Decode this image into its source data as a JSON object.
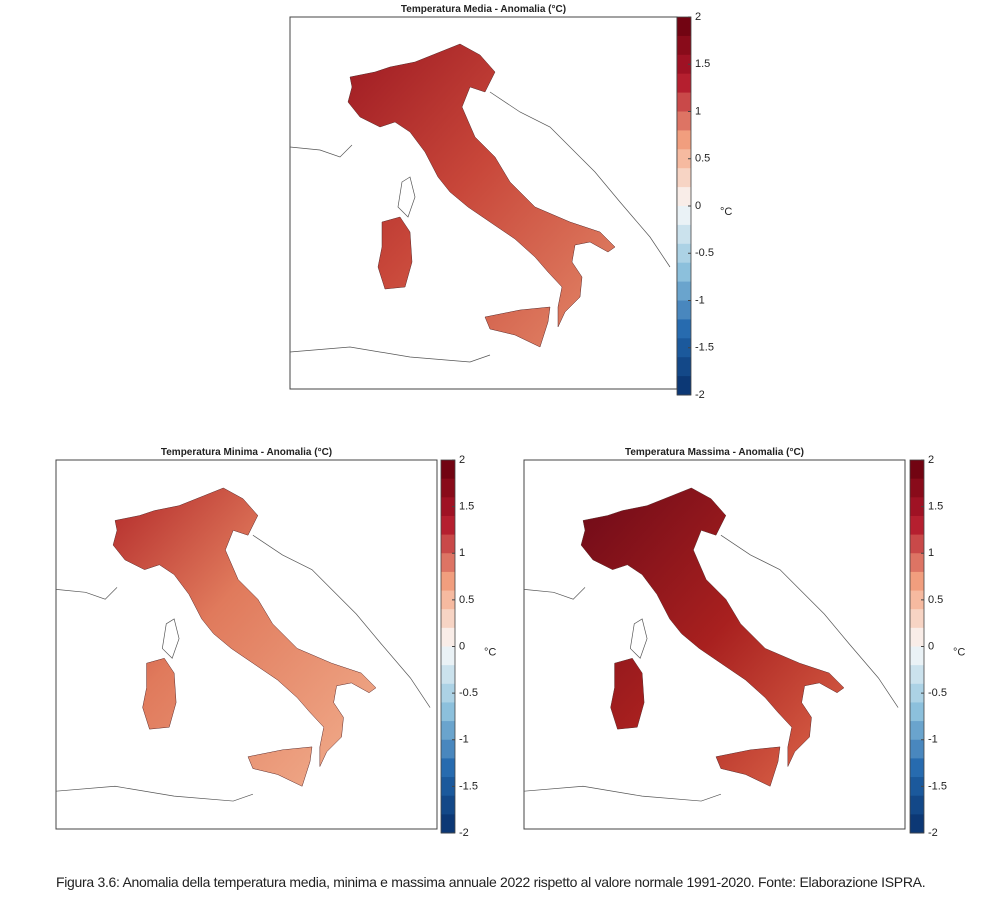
{
  "panels": [
    {
      "title": "Temperatura Media - Anomalia (°C)",
      "colorbar": {
        "lim": [
          -2,
          2
        ],
        "ticks": [
          2,
          1.5,
          1,
          0.5,
          0,
          -0.5,
          -1,
          -1.5,
          -2
        ],
        "unit": "°C"
      }
    },
    {
      "title": "Temperatura Minima - Anomalia (°C)",
      "colorbar": {
        "lim": [
          -2,
          2
        ],
        "ticks": [
          2,
          1.5,
          1,
          0.5,
          0,
          -0.5,
          -1,
          -1.5,
          -2
        ],
        "unit": "°C"
      }
    },
    {
      "title": "Temperatura Massima - Anomalia (°C)",
      "colorbar": {
        "lim": [
          -2,
          2
        ],
        "ticks": [
          2,
          1.5,
          1,
          0.5,
          0,
          -0.5,
          -1,
          -1.5,
          -2
        ],
        "unit": "°C"
      }
    }
  ],
  "caption": "Figura 3.6: Anomalia della temperatura media, minima e massima annuale 2022 rispetto al valore normale 1991-2020. Fonte: Elaborazione ISPRA."
}
